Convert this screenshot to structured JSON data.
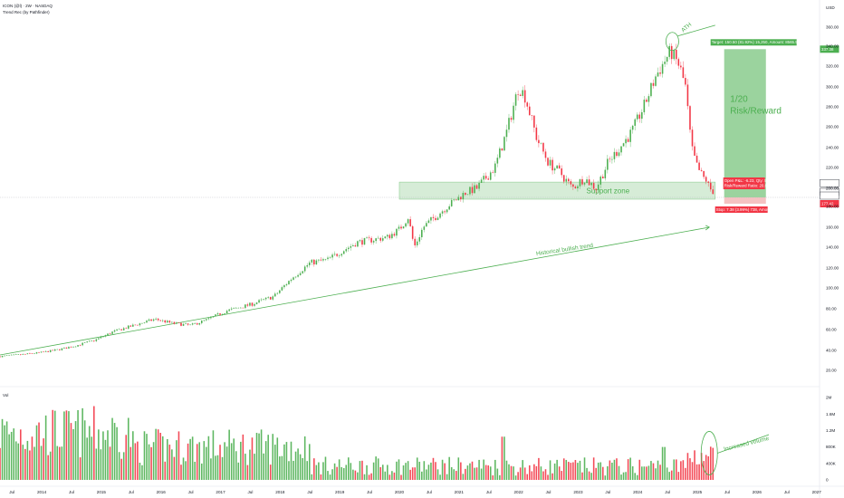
{
  "header": {
    "title": "ICON (@l) · 2W · NASDAQ",
    "indicator": "Trend Rec (by Pathfinder)",
    "volume_label": "Vol"
  },
  "chart_data": {
    "type": "candlestick",
    "currency": "USD",
    "price_ticks": [
      20,
      40,
      60,
      80,
      100,
      120,
      140,
      160,
      180,
      200,
      220,
      240,
      260,
      280,
      300,
      320,
      340,
      360
    ],
    "price_tick_labels": [
      "20.00",
      "40.00",
      "60.00",
      "80.00",
      "100.00",
      "120.00",
      "140.00",
      "160.00",
      "180.00",
      "200.00",
      "220.00",
      "240.00",
      "260.00",
      "280.00",
      "300.00",
      "320.00",
      "340.00",
      "360.00"
    ],
    "volume_ticks": [
      0,
      400000,
      800000,
      1200000,
      1600000,
      2000000
    ],
    "volume_tick_labels": [
      "0",
      "400K",
      "800K",
      "1.2M",
      "1.6M",
      "2M"
    ],
    "x_ticks": [
      {
        "t": 2013.5,
        "label": "Jul"
      },
      {
        "t": 2014.0,
        "label": "2014"
      },
      {
        "t": 2014.5,
        "label": "Jul"
      },
      {
        "t": 2015.0,
        "label": "2015"
      },
      {
        "t": 2015.5,
        "label": "Jul"
      },
      {
        "t": 2016.0,
        "label": "2016"
      },
      {
        "t": 2016.5,
        "label": "Jul"
      },
      {
        "t": 2017.0,
        "label": "2017"
      },
      {
        "t": 2017.5,
        "label": "Jul"
      },
      {
        "t": 2018.0,
        "label": "2018"
      },
      {
        "t": 2018.5,
        "label": "Jul"
      },
      {
        "t": 2019.0,
        "label": "2019"
      },
      {
        "t": 2019.5,
        "label": "Jul"
      },
      {
        "t": 2020.0,
        "label": "2020"
      },
      {
        "t": 2020.5,
        "label": "Jul"
      },
      {
        "t": 2021.0,
        "label": "2021"
      },
      {
        "t": 2021.5,
        "label": "Jul"
      },
      {
        "t": 2022.0,
        "label": "2022"
      },
      {
        "t": 2022.5,
        "label": "Jul"
      },
      {
        "t": 2023.0,
        "label": "2023"
      },
      {
        "t": 2023.5,
        "label": "Jul"
      },
      {
        "t": 2024.0,
        "label": "2024"
      },
      {
        "t": 2024.5,
        "label": "Jul"
      },
      {
        "t": 2025.0,
        "label": "2025"
      },
      {
        "t": 2025.5,
        "label": "Jul"
      },
      {
        "t": 2026.0,
        "label": "2026"
      },
      {
        "t": 2026.5,
        "label": "Jul"
      },
      {
        "t": 2027.0,
        "label": "2027"
      }
    ],
    "price_path": [
      [
        2013.3,
        34
      ],
      [
        2013.7,
        36
      ],
      [
        2014.0,
        38
      ],
      [
        2014.3,
        41
      ],
      [
        2014.6,
        45
      ],
      [
        2014.9,
        50
      ],
      [
        2015.2,
        58
      ],
      [
        2015.6,
        65
      ],
      [
        2015.9,
        70
      ],
      [
        2016.2,
        66
      ],
      [
        2016.5,
        64
      ],
      [
        2016.8,
        70
      ],
      [
        2017.1,
        78
      ],
      [
        2017.5,
        84
      ],
      [
        2017.9,
        92
      ],
      [
        2018.2,
        110
      ],
      [
        2018.5,
        125
      ],
      [
        2018.8,
        128
      ],
      [
        2019.0,
        135
      ],
      [
        2019.3,
        145
      ],
      [
        2019.6,
        148
      ],
      [
        2019.8,
        150
      ],
      [
        2020.0,
        158
      ],
      [
        2020.15,
        170
      ],
      [
        2020.25,
        140
      ],
      [
        2020.4,
        160
      ],
      [
        2020.7,
        175
      ],
      [
        2020.9,
        185
      ],
      [
        2021.1,
        195
      ],
      [
        2021.3,
        200
      ],
      [
        2021.6,
        220
      ],
      [
        2021.8,
        255
      ],
      [
        2022.0,
        300
      ],
      [
        2022.1,
        292
      ],
      [
        2022.3,
        250
      ],
      [
        2022.5,
        225
      ],
      [
        2022.7,
        215
      ],
      [
        2022.9,
        200
      ],
      [
        2023.1,
        210
      ],
      [
        2023.3,
        200
      ],
      [
        2023.5,
        225
      ],
      [
        2023.7,
        240
      ],
      [
        2023.9,
        255
      ],
      [
        2024.1,
        280
      ],
      [
        2024.3,
        310
      ],
      [
        2024.45,
        325
      ],
      [
        2024.55,
        335
      ],
      [
        2024.7,
        320
      ],
      [
        2024.8,
        300
      ],
      [
        2024.9,
        240
      ],
      [
        2025.0,
        220
      ],
      [
        2025.1,
        210
      ],
      [
        2025.15,
        208
      ],
      [
        2025.2,
        200
      ],
      [
        2025.28,
        196
      ]
    ],
    "support_zone": {
      "low": 188,
      "high": 206,
      "label": "Support zone"
    },
    "historical_trend_label": "Historical bullish trend",
    "ath_label": "ATH",
    "risk_reward_label": "1/20\nRisk/Reward",
    "volume_annotation": "Increased volume",
    "position": {
      "target_text": "Target: 150.50 (81.92%) 15,250, Amount: 8565.99",
      "open_pl_text": "Open P&L: -6.23, Qty: 53",
      "rr_ratio_text": "Risk/Reward Ratio: 20.66",
      "stop_text": "Stop: 7.38 (3.99%) 738, Amount: 390",
      "target_price": 337,
      "entry_price": 190,
      "stop_price": 183
    },
    "price_tags": [
      {
        "value": "337.38",
        "price": 337,
        "color": "#4caf50"
      },
      {
        "value": "184.88",
        "price": 205,
        "color": "#ffffff"
      },
      {
        "value": "184.97",
        "price": 196,
        "color": "#ffffff"
      },
      {
        "value": "ICON",
        "price": 192,
        "color": "#ffffff"
      },
      {
        "value": "177.42",
        "price": 183,
        "color": "#f23645"
      }
    ],
    "colors": {
      "up": "#4caf50",
      "down": "#f23645",
      "vol_up": "#4caf50",
      "vol_down": "#f23645",
      "zone_fill": "#c8e6c9",
      "target_fill": "#66bb6a",
      "stop_fill": "#ef9a9a"
    }
  }
}
